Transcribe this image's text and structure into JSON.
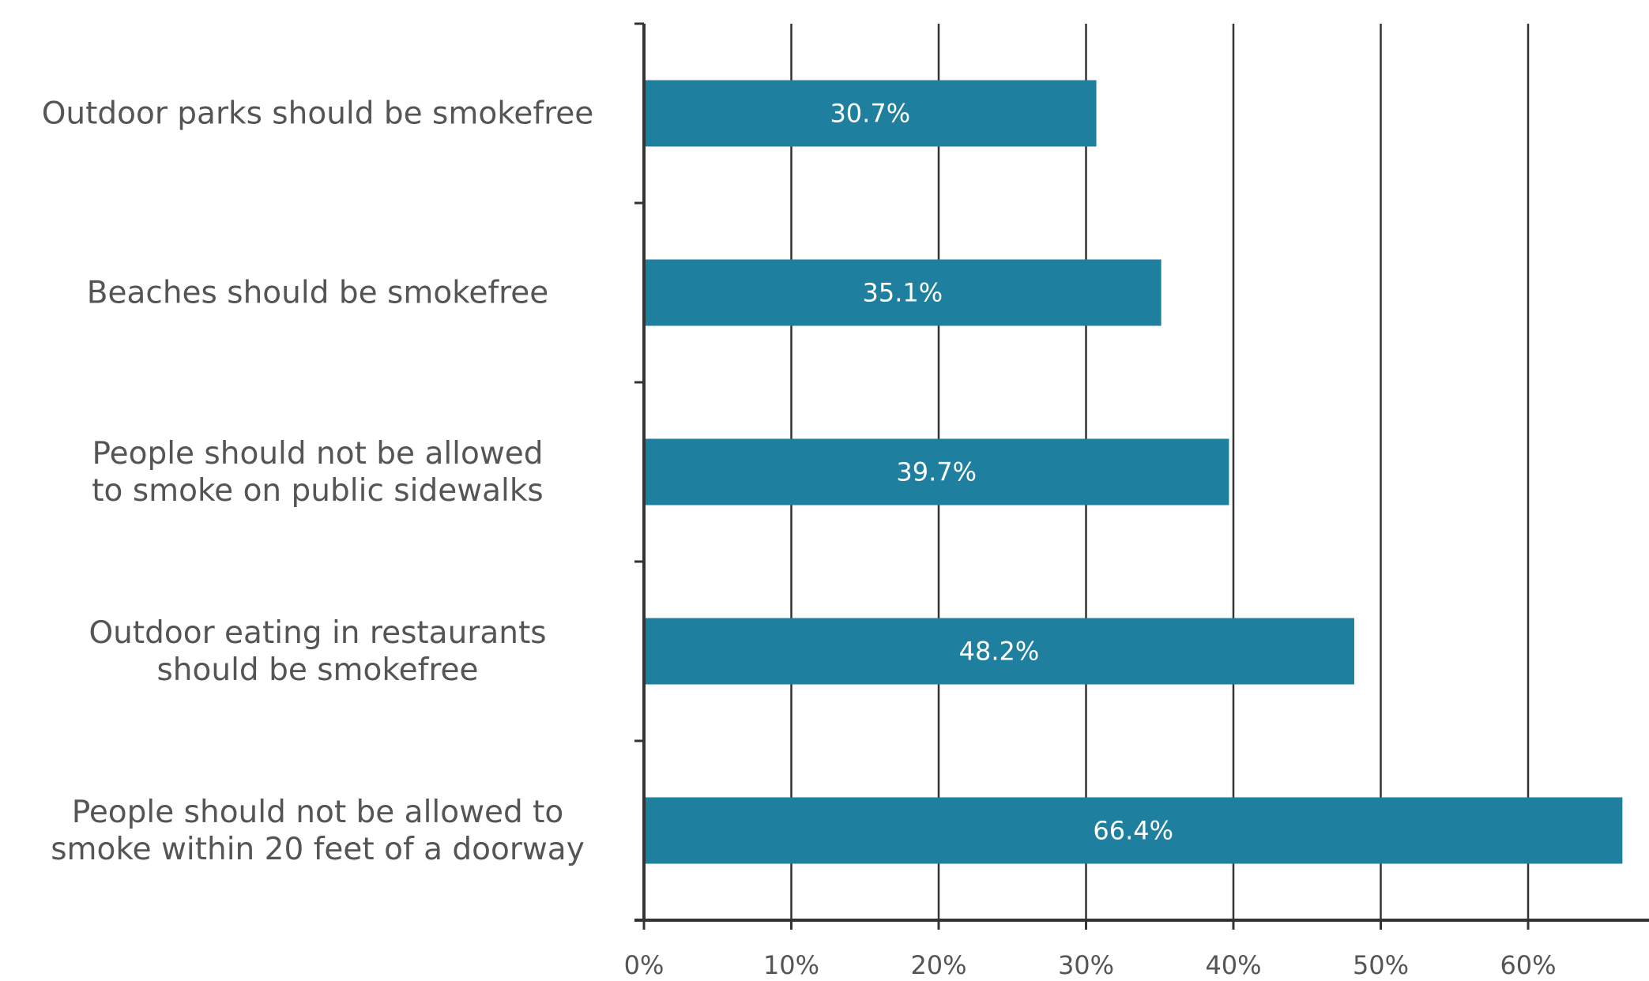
{
  "chart_data": {
    "type": "bar",
    "orientation": "horizontal",
    "categories": [
      [
        "Outdoor parks should be smokefree"
      ],
      [
        "Beaches should be smokefree"
      ],
      [
        "People should not be allowed",
        "to smoke on public sidewalks"
      ],
      [
        "Outdoor eating in restaurants",
        "should be smokefree"
      ],
      [
        "People should not be allowed to",
        "smoke within 20 feet of a doorway"
      ]
    ],
    "values": [
      30.7,
      35.1,
      39.7,
      48.2,
      66.4
    ],
    "data_labels": [
      "30.7%",
      "35.1%",
      "39.7%",
      "48.2%",
      "66.4%"
    ],
    "xlim": [
      0,
      68
    ],
    "xticks": [
      0,
      10,
      20,
      30,
      40,
      50,
      60
    ],
    "xtick_labels": [
      "0%",
      "10%",
      "20%",
      "30%",
      "40%",
      "50%",
      "60%"
    ],
    "grid": "vertical",
    "legend": "none",
    "title": "",
    "xlabel": "",
    "ylabel": "",
    "colors": {
      "bar": "#1f7f9e",
      "axis": "#333333",
      "grid": "#333333",
      "label": "#555555",
      "bar_label": "#ffffff"
    }
  }
}
